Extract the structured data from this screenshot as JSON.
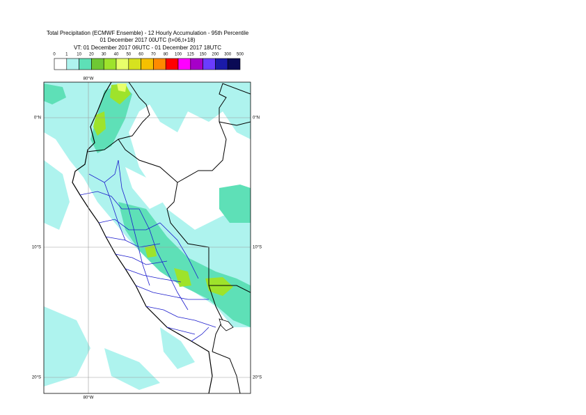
{
  "header": {
    "title": "Total Precipitation (ECMWF Ensemble) - 12 Hourly Accumulation - 95th Percentile",
    "base_time": "01 December 2017 00UTC (t+06,t+18)",
    "valid_time": "VT: 01 December 2017 06UTC - 01 December 2017 18UTC"
  },
  "legend": {
    "labels": [
      "0",
      "1",
      "10",
      "20",
      "30",
      "40",
      "50",
      "60",
      "70",
      "80",
      "100",
      "125",
      "150",
      "200",
      "300",
      "500"
    ],
    "colors": [
      "#ffffff",
      "#aef3ee",
      "#5ee0b7",
      "#6ec834",
      "#9ee32b",
      "#e8ff6b",
      "#d6e21f",
      "#f5c000",
      "#ff8a00",
      "#ff0000",
      "#ff00ff",
      "#a600c8",
      "#6a3cff",
      "#1a1aa8",
      "#0a0a55"
    ]
  },
  "map": {
    "lat_labels": [
      "0°N",
      "10°S",
      "20°S"
    ],
    "lon_labels": [
      "80°W",
      "80°W"
    ]
  }
}
